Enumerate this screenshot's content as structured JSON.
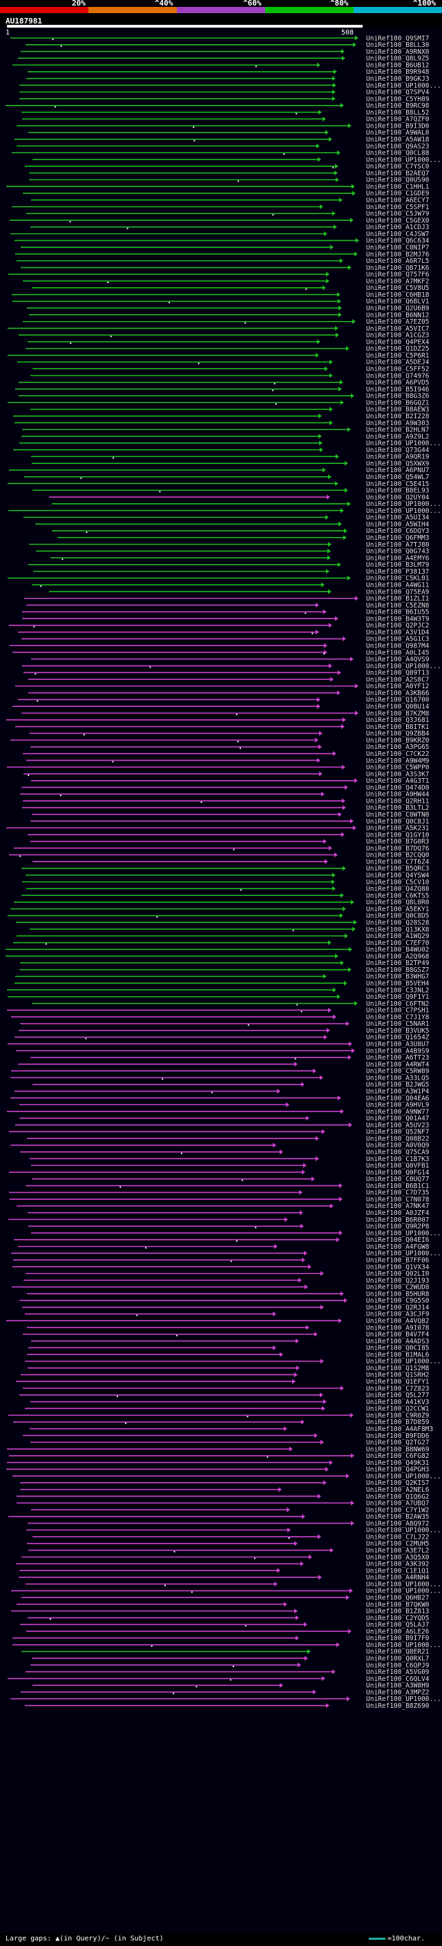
{
  "scale": {
    "ticks": [
      "20%",
      "^40%",
      "^60%",
      "^80%",
      "^100%"
    ],
    "colors": [
      "#e00000",
      "#e07000",
      "#a040c0",
      "#00c000",
      "#00b0d0"
    ]
  },
  "query": {
    "id": "AU187981",
    "start": "1",
    "end": "508"
  },
  "colors": {
    "high": "#22bb22",
    "low": "#cc44cc",
    "insertion": "#ffffff"
  },
  "footer": {
    "gaps_text": "Large gaps: ▲(in Query)/~ (in Subject)",
    "legend_text": "=100char."
  },
  "hits": [
    "UniRef100_Q9SMI7",
    "UniRef100_B8LL30",
    "UniRef100_A9RNX0",
    "UniRef100_Q8L9Z5",
    "UniRef100_B6UB12",
    "UniRef100_B9R948",
    "UniRef100_B9GKJ3",
    "UniRef100_UP1000...",
    "UniRef100_Q7SPV4",
    "UniRef100_C5YH89",
    "UniRef100_B9RC98",
    "UniRef100_B8LL52",
    "UniRef100_A7QZF0",
    "UniRef100_B9I3D0",
    "UniRef100_A9WAL0",
    "UniRef100_A5AW18",
    "UniRef100_Q9AS23",
    "UniRef100_Q0CL88",
    "UniRef100_UP1000...",
    "UniRef100_C7YSC0",
    "UniRef100_B2AEQ7",
    "UniRef100_Q0US90",
    "UniRef100_C1HHL1",
    "UniRef100_C1GDE9",
    "UniRef100_A6ECY7",
    "UniRef100_C5SPF1",
    "UniRef100_C5JW79",
    "UniRef100_C5GEX0",
    "UniRef100_A1CDJ3",
    "UniRef100_C4JSW7",
    "UniRef100_Q6C634",
    "UniRef100_C0NIP7",
    "UniRef100_B2MJ76",
    "UniRef100_A6R7L5",
    "UniRef100_Q871K6",
    "UniRef100_Q757F6",
    "UniRef100_A7MKF2",
    "UniRef100_C5V8U5",
    "UniRef100_C6HB18",
    "UniRef100_Q6BLV1",
    "UniRef100_Q2U6B9",
    "UniRef100_B6NN12",
    "UniRef100_A7EZ05",
    "UniRef100_A5VIC7",
    "UniRef100_A1CGZ3",
    "UniRef100_Q4PEX4",
    "UniRef100_Q1DZ25",
    "UniRef100_C5P6R1",
    "UniRef100_A5DEJ4",
    "UniRef100_C5FF52",
    "UniRef100_Q74976",
    "UniRef100_A6PVD5",
    "UniRef100_B5I946",
    "UniRef100_B8G3Z6",
    "UniRef100_B6GQZ1",
    "UniRef100_B8AEW3",
    "UniRef100_B2I228",
    "UniRef100_A9W303",
    "UniRef100_B2HLN7",
    "UniRef100_A9Z9L2",
    "UniRef100_UP1000...",
    "UniRef100_Q73G44",
    "UniRef100_A9QR19",
    "UniRef100_Q5XWX9",
    "UniRef100_A6PNU7",
    "UniRef100_Q54WL7",
    "UniRef100_C5E415",
    "UniRef100_B8EL93",
    "UniRef100_Q2UY04",
    "UniRef100_UP1000...",
    "UniRef100_UP1000...",
    "UniRef100_A5UI34",
    "UniRef100_A5WIH4",
    "UniRef100_C6DQY3",
    "UniRef100_Q6FMM3",
    "UniRef100_A7TJ80",
    "UniRef100_Q0G743",
    "UniRef100_A4EMY6",
    "UniRef100_B3LM79",
    "UniRef100_P38137",
    "UniRef100_C5KL01",
    "UniRef100_A4WG11",
    "UniRef100_Q75EA9",
    "UniRef100_B1ZLI1",
    "UniRef100_C5EZN8",
    "UniRef100_B6IU55",
    "UniRef100_B4W3T9",
    "UniRef100_Q2PJC2",
    "UniRef100_A3V1D4",
    "UniRef100_A5G1C3",
    "UniRef100_Q987M4",
    "UniRef100_A0LI45",
    "UniRef100_A4QVS9",
    "UniRef100_UP1000...",
    "UniRef100_Q89T13",
    "UniRef100_A2S8C7",
    "UniRef100_A0YF12",
    "UniRef100_A3KB66",
    "UniRef100_Q16700",
    "UniRef100_Q0BU14",
    "UniRef100_B7KZM8",
    "UniRef100_Q3J681",
    "UniRef100_B8ITK1",
    "UniRef100_Q9ZBB4",
    "UniRef100_B9KRZ0",
    "UniRef100_A3PG65",
    "UniRef100_C7CK22",
    "UniRef100_A9W4M9",
    "UniRef100_C5WPP0",
    "UniRef100_A3S3K7",
    "UniRef100_A4G3T1",
    "UniRef100_Q474D0",
    "UniRef100_A9HW44",
    "UniRef100_Q2RH11",
    "UniRef100_B3LTL2",
    "UniRef100_C0WTN0",
    "UniRef100_Q0C8J1",
    "UniRef100_A5K231",
    "UniRef100_Q1GY10",
    "UniRef100_B7G0R3",
    "UniRef100_B7DQ76",
    "UniRef100_B2CQQ0",
    "UniRef100_C7T6Z4",
    "UniRef100_B5QRC3",
    "UniRef100_Q4YSW4",
    "UniRef100_C5CV10",
    "UniRef100_Q4ZQ88",
    "UniRef100_C6KTS5",
    "UniRef100_Q8L0R0",
    "UniRef100_A5EKY1",
    "UniRef100_Q0C8D5",
    "UniRef100_Q28S28",
    "UniRef100_Q13KX8",
    "UniRef100_A1WQ29",
    "UniRef100_C7EF70",
    "UniRef100_B4WU02",
    "UniRef100_A2Q968",
    "UniRef100_B2TP49",
    "UniRef100_B8GSZ7",
    "UniRef100_B3WHG7",
    "UniRef100_B5VEH4",
    "UniRef100_C3JNL2",
    "UniRef100_Q9F1Y1",
    "UniRef100_C6FTN2",
    "UniRef100_C7PSH1",
    "UniRef100_C7J1Y8",
    "UniRef100_C5NAR1",
    "UniRef100_B3VUK5",
    "UniRef100_Q1654Z",
    "UniRef100_A3U8U7",
    "UniRef100_A4B9S9",
    "UniRef100_A6TT23",
    "UniRef100_A4RWT4",
    "UniRef100_C5RW89",
    "UniRef100_A33LQ5",
    "UniRef100_B2JWG5",
    "UniRef100_A3W1P4",
    "UniRef100_Q04EA6",
    "UniRef100_A9HVL9",
    "UniRef100_A9NW77",
    "UniRef100_Q01A47",
    "UniRef100_A5UV23",
    "UniRef100_Q52NF7",
    "UniRef100_Q08B22",
    "UniRef100_A0V0Q9",
    "UniRef100_Q75CA9",
    "UniRef100_C1B7K3",
    "UniRef100_Q0VFB1",
    "UniRef100_Q0FG14",
    "UniRef100_C0UQ77",
    "UniRef100_B6B1C1",
    "UniRef100_C7D735",
    "UniRef100_C7N078",
    "UniRef100_A7NK47",
    "UniRef100_A0JZF4",
    "UniRef100_B6R007",
    "UniRef100_Q9R2P8",
    "UniRef100_UP1000...",
    "UniRef100_Q04EI6",
    "UniRef100_A4FGW8",
    "UniRef100_UP1000...",
    "UniRef100_B7FF06",
    "UniRef100_Q1VX34",
    "UniRef100_Q02LI0",
    "UniRef100_Q2J193",
    "UniRef100_C2WUD8",
    "UniRef100_B5HUR8",
    "UniRef100_C9G5S0",
    "UniRef100_Q2RJ14",
    "UniRef100_A3CJF9",
    "UniRef100_A4VQ82",
    "UniRef100_A9I078",
    "UniRef100_B4V7F4",
    "UniRef100_A4ADS3",
    "UniRef100_Q0CI85",
    "UniRef100_B1MAL6",
    "UniRef100_UP1000...",
    "UniRef100_Q1S2M8",
    "UniRef100_Q1SRH2",
    "UniRef100_Q1EFY1",
    "UniRef100_C7Z823",
    "UniRef100_Q5L277",
    "UniRef100_A41KV3",
    "UniRef100_Q2CCW1",
    "UniRef100_C9R0Z9",
    "UniRef100_B7D859",
    "UniRef100_A4AF8M3",
    "UniRef100_B9FDD6",
    "UniRef100_Q2TG27",
    "UniRef100_B8NW69",
    "UniRef100_C6FG82",
    "UniRef100_Q49K31",
    "UniRef100_Q4PGH3",
    "UniRef100_UP1000...",
    "UniRef100_Q2KIS7",
    "UniRef100_A2NEL6",
    "UniRef100_Q1Q6G2",
    "UniRef100_A7UBQ7",
    "UniRef100_C7Y1W2",
    "UniRef100_B2AW35",
    "UniRef100_A8Q972",
    "UniRef100_UP1000...",
    "UniRef100_C7LJ22",
    "UniRef100_C2MUH5",
    "UniRef100_A3E7L2",
    "UniRef100_A3Q5X0",
    "UniRef100_A3K392",
    "UniRef100_C1E1Q1",
    "UniRef100_A4RNH4",
    "UniRef100_UP1000...",
    "UniRef100_UP1000...",
    "UniRef100_Q6HB27",
    "UniRef100_B7QKW0",
    "UniRef100_B1Z813",
    "UniRef100_C2YQD5",
    "UniRef100_Q5LAJ7",
    "UniRef100_A6LE26",
    "UniRef100_B9I7F0",
    "UniRef100_UP1000...",
    "UniRef100_Q8ER21",
    "UniRef100_Q0RXL7",
    "UniRef100_C6QPJ9",
    "UniRef100_A5VG09",
    "UniRef100_C6QLV4",
    "UniRef100_A3W8H9",
    "UniRef100_A3MPZ2",
    "UniRef100_UP1000...",
    "UniRef100_B8Z690"
  ]
}
